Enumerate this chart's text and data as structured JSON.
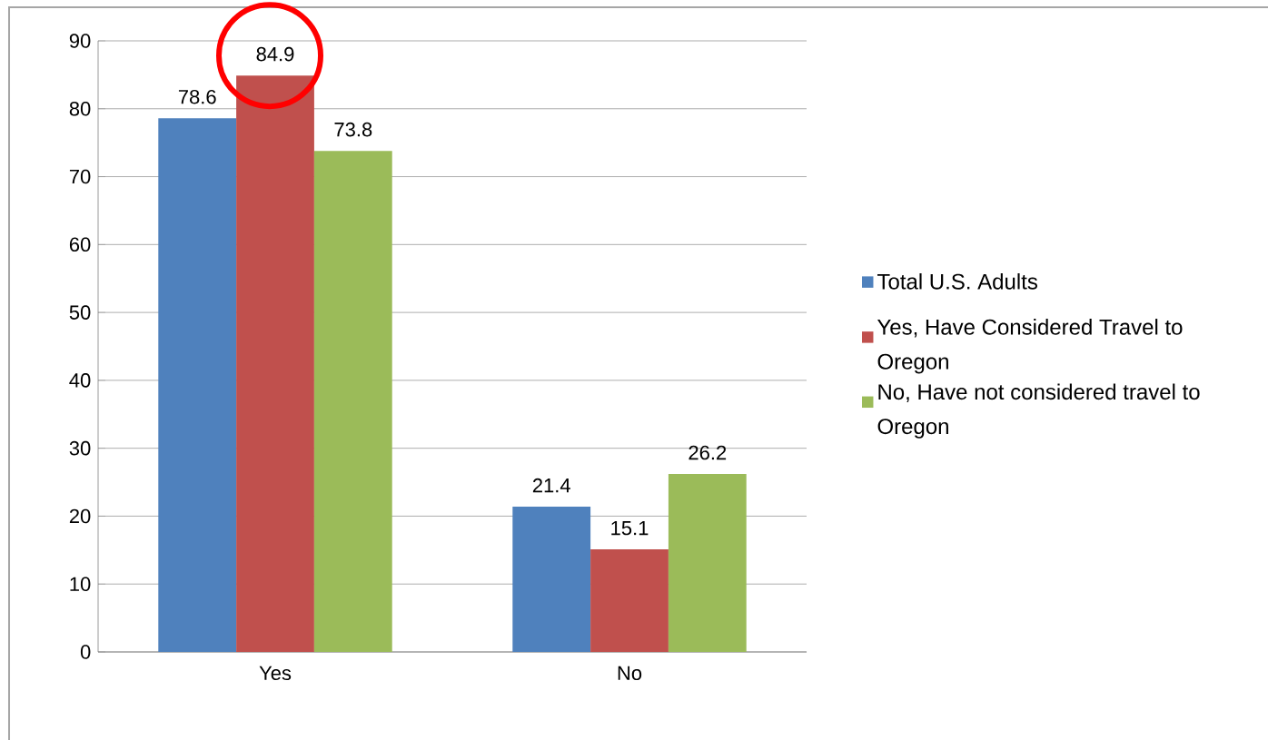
{
  "chart_data": {
    "type": "bar",
    "categories": [
      "Yes",
      "No"
    ],
    "series": [
      {
        "name": "Total U.S. Adults",
        "color": "#4f81bd",
        "values": [
          78.6,
          21.4
        ]
      },
      {
        "name": "Yes, Have Considered Travel to Oregon",
        "color": "#c0504d",
        "values": [
          84.9,
          15.1
        ]
      },
      {
        "name": "No, Have not considered travel to Oregon",
        "color": "#9bbb59",
        "values": [
          73.8,
          26.2
        ]
      }
    ],
    "ylim": [
      0,
      90
    ],
    "yticks": [
      0,
      10,
      20,
      30,
      40,
      50,
      60,
      70,
      80,
      90
    ],
    "grid": "y",
    "legend": "right",
    "data_labels": true
  }
}
